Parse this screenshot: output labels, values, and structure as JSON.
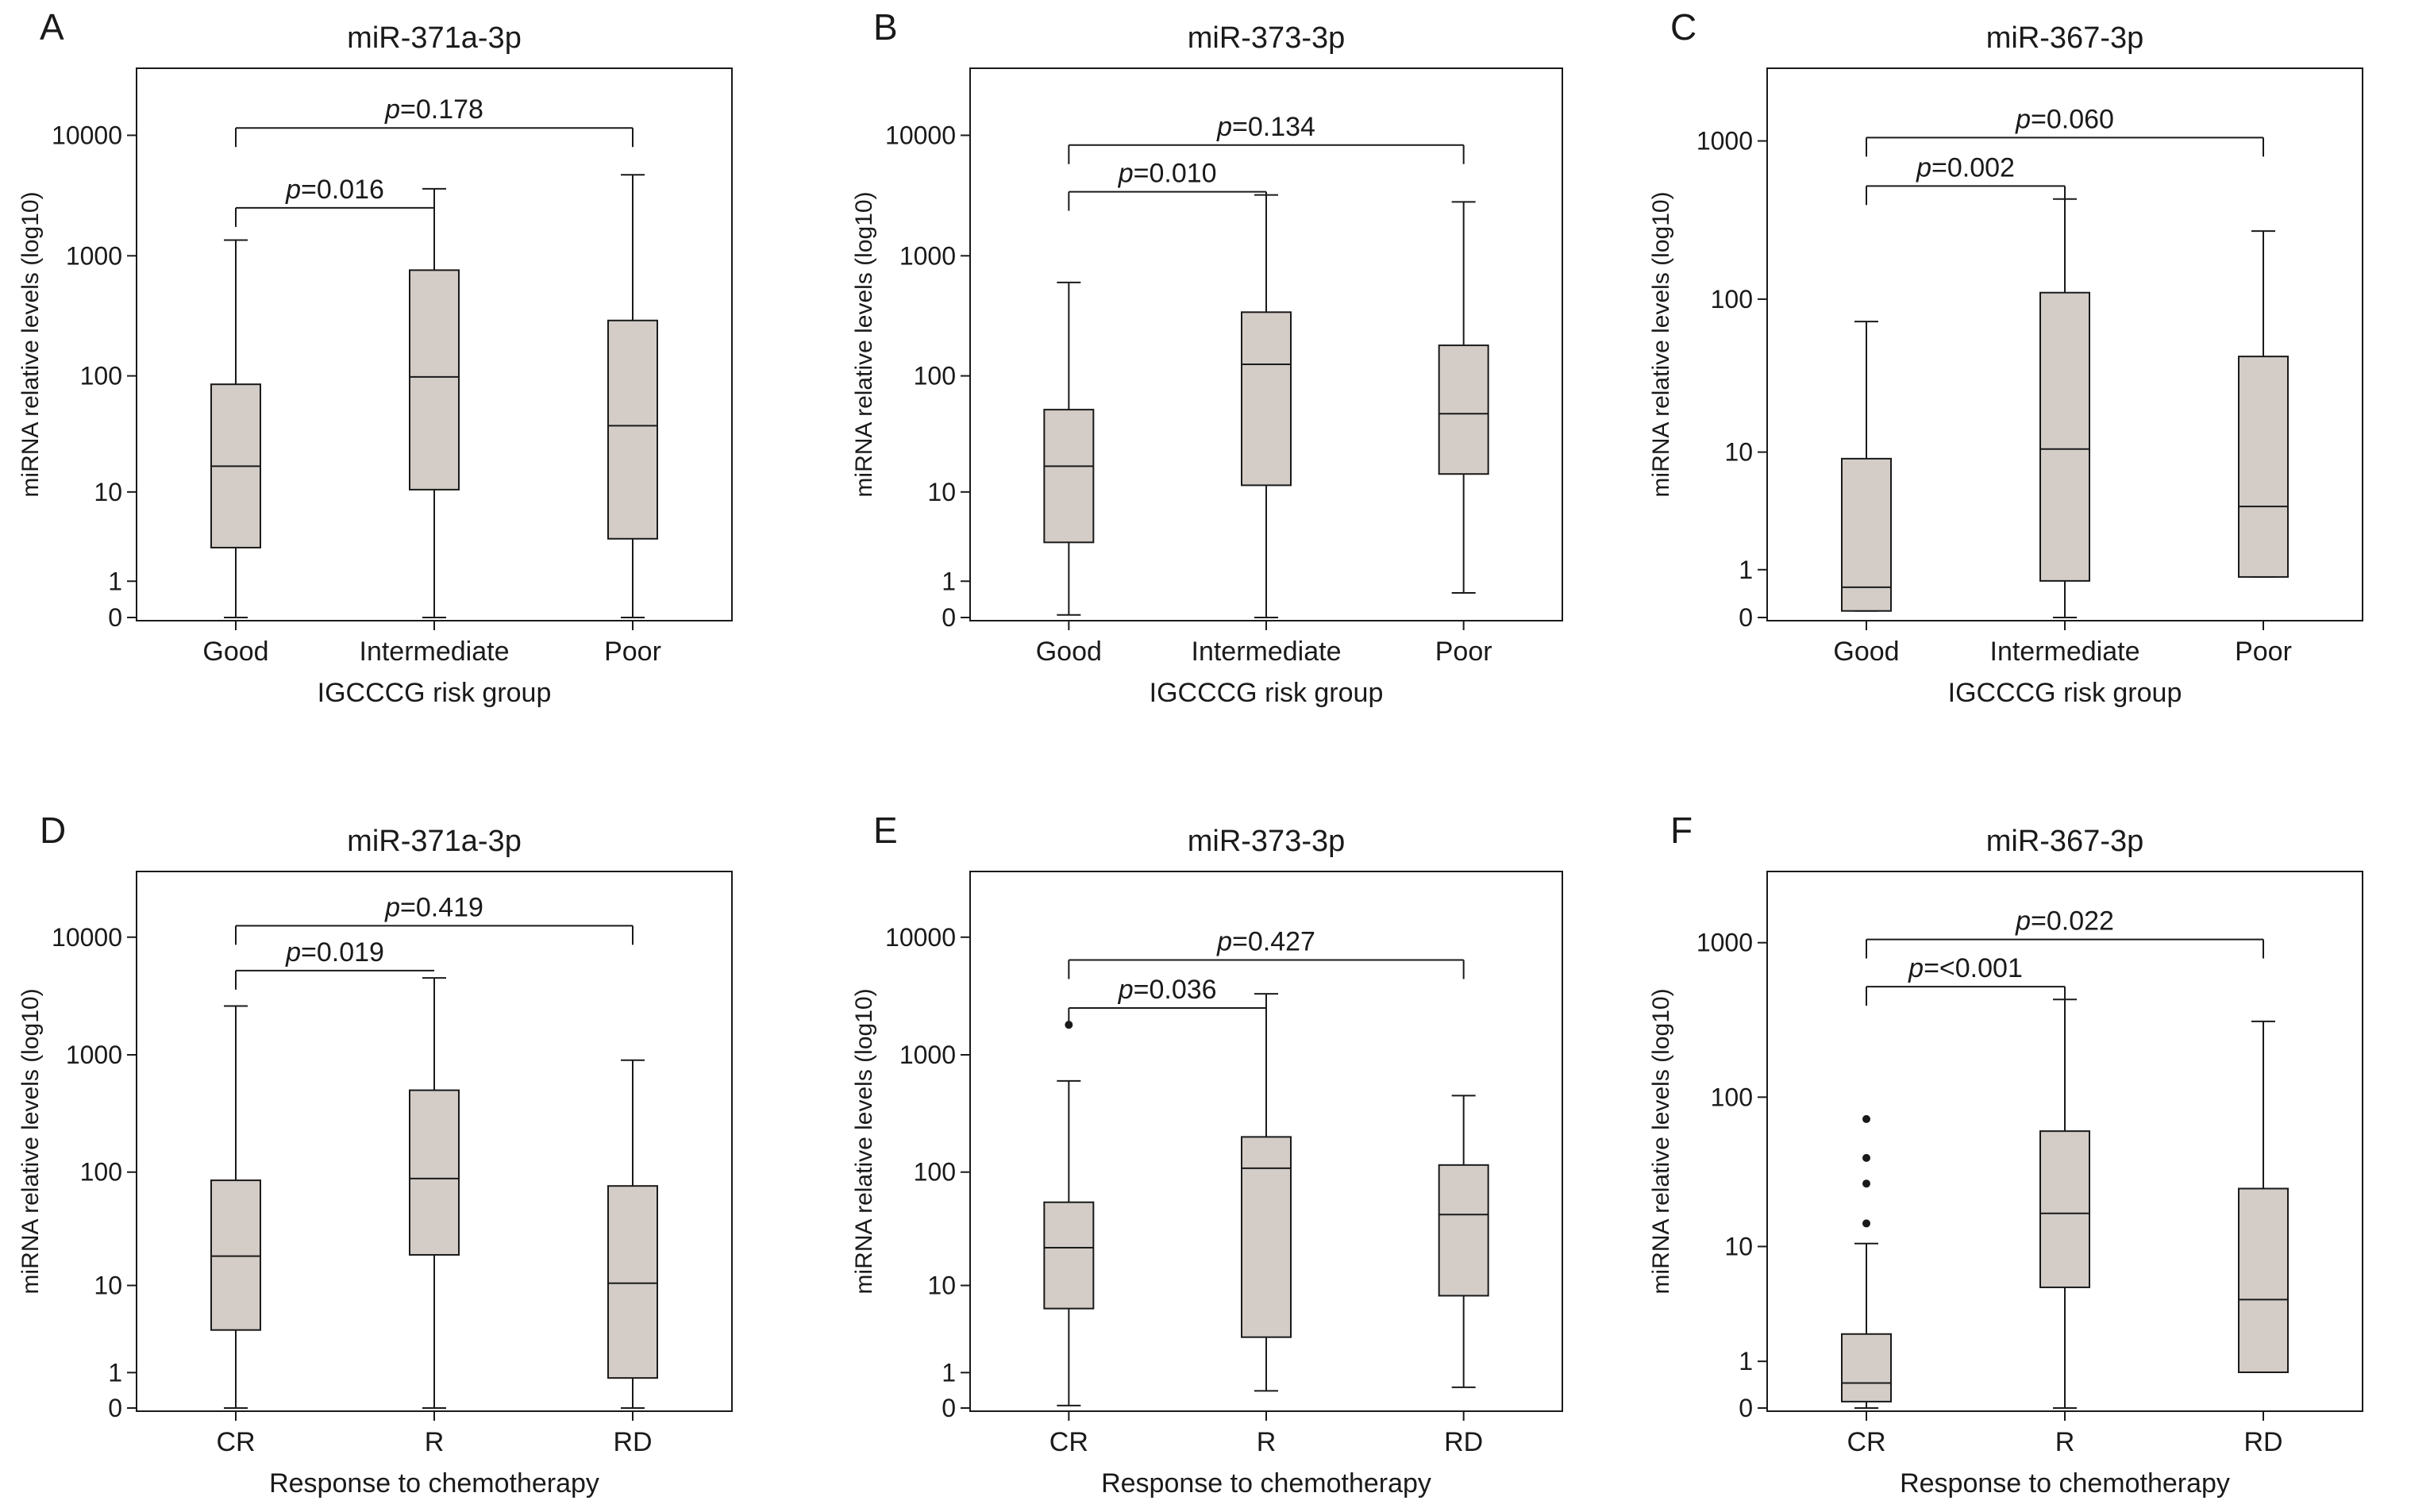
{
  "figure": {
    "panels": [
      {
        "letter": "A",
        "chart_data": {
          "type": "boxplot",
          "title": "miR-371a-3p",
          "xlabel": "IGCCCG risk group",
          "ylabel": "miRNA relative levels (log10)",
          "yscale": "log10(x+1)",
          "yticks": [
            "0",
            "1",
            "10",
            "100",
            "1000",
            "10000"
          ],
          "ytick_values": [
            0,
            1,
            10,
            100,
            1000,
            10000
          ],
          "ymax": 30000,
          "categories": [
            "Good",
            "Intermediate",
            "Poor"
          ],
          "boxes": [
            {
              "min": 0,
              "q1": 2.8,
              "median": 17,
              "q3": 85,
              "max": 1350,
              "outliers": []
            },
            {
              "min": 0,
              "q1": 10.5,
              "median": 98,
              "q3": 760,
              "max": 3600,
              "outliers": []
            },
            {
              "min": 0,
              "q1": 3.5,
              "median": 38,
              "q3": 290,
              "max": 4700,
              "outliers": []
            }
          ],
          "comparisons": [
            {
              "label": "p",
              "value": "=0.016",
              "from": 0,
              "to": 1,
              "y": 2500,
              "drop_from": 1,
              "drop_to": 1
            },
            {
              "label": "p",
              "value": "=0.178",
              "from": 0,
              "to": 2,
              "y": 11500,
              "drop_from": 1,
              "drop_to": 1
            }
          ]
        }
      },
      {
        "letter": "B",
        "chart_data": {
          "type": "boxplot",
          "title": "miR-373-3p",
          "xlabel": "IGCCCG risk group",
          "ylabel": "miRNA relative levels (log10)",
          "yscale": "log10(x+1)",
          "yticks": [
            "0",
            "1",
            "10",
            "100",
            "1000",
            "10000"
          ],
          "ytick_values": [
            0,
            1,
            10,
            100,
            1000,
            10000
          ],
          "ymax": 30000,
          "categories": [
            "Good",
            "Intermediate",
            "Poor"
          ],
          "boxes": [
            {
              "min": 0.05,
              "q1": 3.2,
              "median": 17,
              "q3": 52,
              "max": 600,
              "outliers": []
            },
            {
              "min": 0,
              "q1": 11.5,
              "median": 125,
              "q3": 340,
              "max": 3200,
              "outliers": []
            },
            {
              "min": 0.6,
              "q1": 14.5,
              "median": 48,
              "q3": 180,
              "max": 2800,
              "outliers": []
            }
          ],
          "comparisons": [
            {
              "label": "p",
              "value": "=0.010",
              "from": 0,
              "to": 1,
              "y": 3400,
              "drop_from": 1,
              "drop_to": 1
            },
            {
              "label": "p",
              "value": "=0.134",
              "from": 0,
              "to": 2,
              "y": 8300,
              "drop_from": 1,
              "drop_to": 1
            }
          ]
        }
      },
      {
        "letter": "C",
        "chart_data": {
          "type": "boxplot",
          "title": "miR-367-3p",
          "xlabel": "IGCCCG risk group",
          "ylabel": "miRNA relative levels (log10)",
          "yscale": "log10(x+1)",
          "yticks": [
            "0",
            "1",
            "10",
            "100",
            "1000"
          ],
          "ytick_values": [
            0,
            1,
            10,
            100,
            1000
          ],
          "ymax": 2500,
          "categories": [
            "Good",
            "Intermediate",
            "Poor"
          ],
          "boxes": [
            {
              "min": 0.1,
              "q1": 0.1,
              "median": 0.55,
              "q3": 9,
              "max": 72,
              "outliers": []
            },
            {
              "min": 0,
              "q1": 0.7,
              "median": 10.5,
              "q3": 110,
              "max": 430,
              "outliers": []
            },
            {
              "min": 0.8,
              "q1": 0.8,
              "median": 4,
              "q3": 43,
              "max": 270,
              "outliers": []
            }
          ],
          "comparisons": [
            {
              "label": "p",
              "value": "=0.002",
              "from": 0,
              "to": 1,
              "y": 520,
              "drop_from": 1,
              "drop_to": 1
            },
            {
              "label": "p",
              "value": "=0.060",
              "from": 0,
              "to": 2,
              "y": 1050,
              "drop_from": 1,
              "drop_to": 1
            }
          ]
        }
      },
      {
        "letter": "D",
        "chart_data": {
          "type": "boxplot",
          "title": "miR-371a-3p",
          "xlabel": "Response to chemotherapy",
          "ylabel": "miRNA relative levels (log10)",
          "yscale": "log10(x+1)",
          "yticks": [
            "0",
            "1",
            "10",
            "100",
            "1000",
            "10000"
          ],
          "ytick_values": [
            0,
            1,
            10,
            100,
            1000,
            10000
          ],
          "ymax": 30000,
          "categories": [
            "CR",
            "R",
            "RD"
          ],
          "boxes": [
            {
              "min": 0,
              "q1": 3.6,
              "median": 18.5,
              "q3": 85,
              "max": 2600,
              "outliers": []
            },
            {
              "min": 0,
              "q1": 19,
              "median": 88,
              "q3": 500,
              "max": 4500,
              "outliers": []
            },
            {
              "min": 0,
              "q1": 0.8,
              "median": 10.5,
              "q3": 76,
              "max": 900,
              "outliers": []
            }
          ],
          "comparisons": [
            {
              "label": "p",
              "value": "=0.019",
              "from": 0,
              "to": 1,
              "y": 5200,
              "drop_from": 1,
              "drop_to": 0
            },
            {
              "label": "p",
              "value": "=0.419",
              "from": 0,
              "to": 2,
              "y": 12500,
              "drop_from": 1,
              "drop_to": 1
            }
          ]
        }
      },
      {
        "letter": "E",
        "chart_data": {
          "type": "boxplot",
          "title": "miR-373-3p",
          "xlabel": "Response to chemotherapy",
          "ylabel": "miRNA relative levels (log10)",
          "yscale": "log10(x+1)",
          "yticks": [
            "0",
            "1",
            "10",
            "100",
            "1000",
            "10000"
          ],
          "ytick_values": [
            0,
            1,
            10,
            100,
            1000,
            10000
          ],
          "ymax": 30000,
          "categories": [
            "CR",
            "R",
            "RD"
          ],
          "boxes": [
            {
              "min": 0.05,
              "q1": 6,
              "median": 22,
              "q3": 55,
              "max": 600,
              "outliers": [
                1800
              ]
            },
            {
              "min": 0.4,
              "q1": 3,
              "median": 108,
              "q3": 200,
              "max": 3300,
              "outliers": []
            },
            {
              "min": 0.5,
              "q1": 8,
              "median": 43,
              "q3": 115,
              "max": 450,
              "outliers": []
            }
          ],
          "comparisons": [
            {
              "label": "p",
              "value": "=0.036",
              "from": 0,
              "to": 1,
              "y": 2500,
              "drop_from": 1,
              "drop_to": 1
            },
            {
              "label": "p",
              "value": "=0.427",
              "from": 0,
              "to": 2,
              "y": 6400,
              "drop_from": 1,
              "drop_to": 1
            }
          ]
        }
      },
      {
        "letter": "F",
        "chart_data": {
          "type": "boxplot",
          "title": "miR-367-3p",
          "xlabel": "Response to chemotherapy",
          "ylabel": "miRNA relative levels (log10)",
          "yscale": "log10(x+1)",
          "yticks": [
            "0",
            "1",
            "10",
            "100",
            "1000"
          ],
          "ytick_values": [
            0,
            1,
            10,
            100,
            1000
          ],
          "ymax": 2500,
          "categories": [
            "CR",
            "R",
            "RD"
          ],
          "boxes": [
            {
              "min": 0,
              "q1": 0.1,
              "median": 0.45,
              "q3": 2,
              "max": 10.5,
              "outliers": [
                14.5,
                27,
                40,
                72
              ]
            },
            {
              "min": 0,
              "q1": 5,
              "median": 17,
              "q3": 60,
              "max": 430,
              "outliers": []
            },
            {
              "min": 0.7,
              "q1": 0.7,
              "median": 4,
              "q3": 25,
              "max": 310,
              "outliers": []
            }
          ],
          "comparisons": [
            {
              "label": "p",
              "value": "=<0.001",
              "from": 0,
              "to": 1,
              "y": 520,
              "drop_from": 1,
              "drop_to": 1
            },
            {
              "label": "p",
              "value": "=0.022",
              "from": 0,
              "to": 2,
              "y": 1050,
              "drop_from": 1,
              "drop_to": 1
            }
          ]
        }
      }
    ]
  }
}
